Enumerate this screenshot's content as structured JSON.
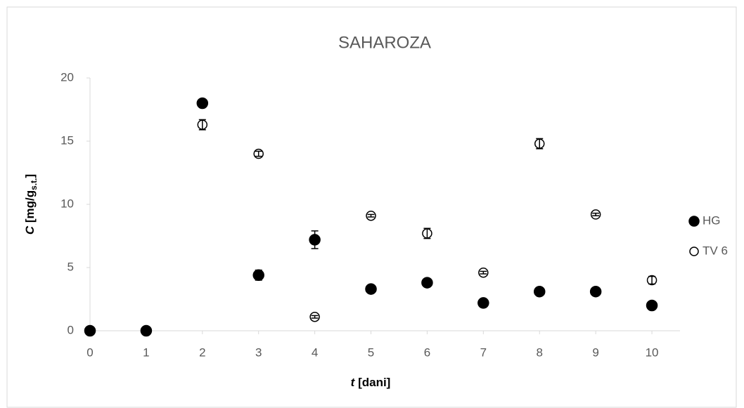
{
  "chart_data": {
    "type": "scatter",
    "title": "SAHAROZA",
    "x_label": {
      "symbol": "t",
      "unit": "[dani]"
    },
    "y_label": {
      "symbol": "C",
      "unit": "[mg/g",
      "sub": "s.t.",
      "close": "]"
    },
    "x": [
      0,
      1,
      2,
      3,
      4,
      5,
      6,
      7,
      8,
      9,
      10
    ],
    "series": [
      {
        "name": "HG",
        "color": "#000000",
        "filled": true,
        "values": [
          0,
          0,
          18,
          4.4,
          7.2,
          3.3,
          3.8,
          2.2,
          3.1,
          3.1,
          2.0
        ],
        "errors": [
          0.05,
          0.05,
          0.2,
          0.4,
          0.7,
          0.2,
          0.1,
          0.1,
          0.1,
          0.1,
          0.1
        ]
      },
      {
        "name": "TV 6",
        "color": "#000000",
        "filled": false,
        "values": [
          0,
          0,
          16.3,
          14.0,
          1.1,
          9.1,
          7.7,
          4.6,
          14.8,
          9.2,
          4.0
        ],
        "errors": [
          0.05,
          0.05,
          0.4,
          0.2,
          0.1,
          0.1,
          0.4,
          0.1,
          0.4,
          0.1,
          0.3
        ]
      }
    ],
    "xlim": [
      0,
      10.5
    ],
    "xticks": [
      0,
      1,
      2,
      3,
      4,
      5,
      6,
      7,
      8,
      9,
      10
    ],
    "ylim": [
      0,
      20
    ],
    "yticks": [
      0,
      5,
      10,
      15,
      20
    ],
    "grid": false,
    "legend": "right"
  }
}
